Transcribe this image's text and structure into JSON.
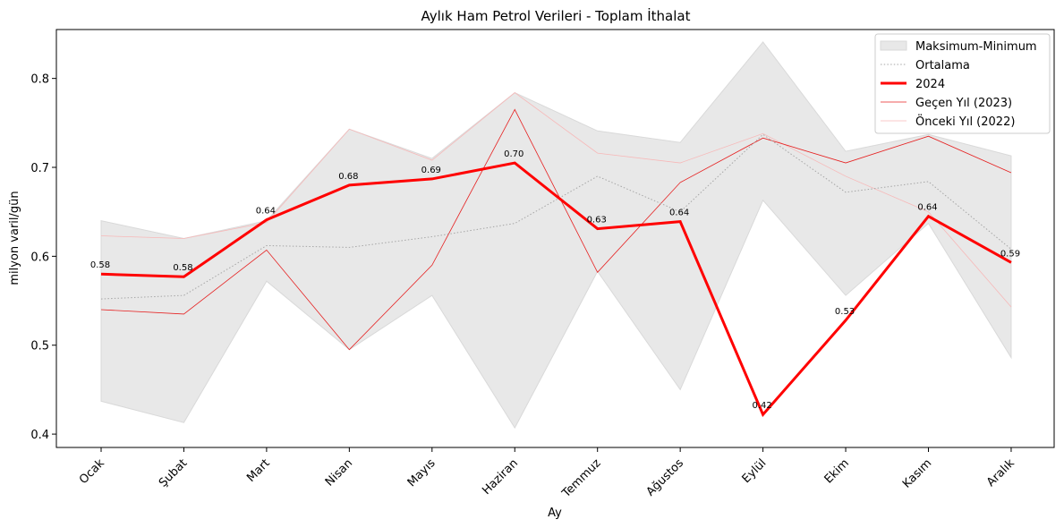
{
  "chart_data": {
    "type": "line",
    "title": "Aylık Ham Petrol Verileri - Toplam İthalat",
    "xlabel": "Ay",
    "ylabel": "milyon varil/gün",
    "categories": [
      "Ocak",
      "Şubat",
      "Mart",
      "Nisan",
      "Mayıs",
      "Haziran",
      "Temmuz",
      "Ağustos",
      "Eylül",
      "Ekim",
      "Kasım",
      "Aralık"
    ],
    "ylim": [
      0.385,
      0.855
    ],
    "yticks": [
      0.4,
      0.5,
      0.6,
      0.7,
      0.8
    ],
    "ytick_labels": [
      "0.4",
      "0.5",
      "0.6",
      "0.7",
      "0.8"
    ],
    "grid": false,
    "legend_position": "top-right",
    "band": {
      "name": "Maksimum-Minimum",
      "color": "#e8e8e8",
      "max": [
        0.64,
        0.62,
        0.64,
        0.743,
        0.71,
        0.784,
        0.741,
        0.728,
        0.841,
        0.718,
        0.737,
        0.713
      ],
      "min": [
        0.437,
        0.413,
        0.572,
        0.495,
        0.556,
        0.407,
        0.583,
        0.45,
        0.663,
        0.556,
        0.637,
        0.486
      ]
    },
    "series": [
      {
        "name": "Ortalama",
        "color": "#a6a6a6",
        "style": "dotted",
        "values": [
          0.552,
          0.556,
          0.612,
          0.61,
          0.622,
          0.637,
          0.69,
          0.65,
          0.737,
          0.672,
          0.684,
          0.608
        ]
      },
      {
        "name": "2024",
        "color": "#ff0000",
        "style": "thick",
        "values": [
          0.58,
          0.577,
          0.641,
          0.68,
          0.687,
          0.705,
          0.631,
          0.639,
          0.422,
          0.528,
          0.645,
          0.593
        ],
        "labels": [
          "0.58",
          "0.58",
          "0.64",
          "0.68",
          "0.69",
          "0.70",
          "0.63",
          "0.64",
          "0.42",
          "0.53",
          "0.64",
          "0.59"
        ]
      },
      {
        "name": "Geçen Yıl (2023)",
        "color": "#e62020",
        "style": "thin",
        "values": [
          0.54,
          0.535,
          0.607,
          0.495,
          0.59,
          0.765,
          0.582,
          0.683,
          0.733,
          0.705,
          0.735,
          0.694
        ]
      },
      {
        "name": "Önceki Yıl (2022)",
        "color": "#f7b8b8",
        "style": "faint",
        "values": [
          0.623,
          0.62,
          0.638,
          0.743,
          0.708,
          0.784,
          0.716,
          0.705,
          0.738,
          0.69,
          0.65,
          0.543
        ]
      }
    ]
  }
}
